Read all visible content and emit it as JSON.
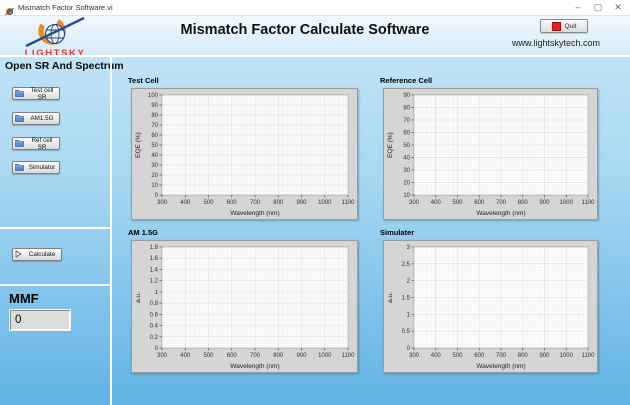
{
  "window": {
    "title": "Mismatch Factor Software.vi",
    "controls": {
      "minimize": "–",
      "maximize": "▢",
      "close": "✕"
    }
  },
  "header": {
    "title": "Mismatch Factor Calculate Software",
    "quit_label": "Quit",
    "website": "www.lightskytech.com"
  },
  "sidebar": {
    "logo_text": "LIGHTSKY",
    "heading": "Open SR And Spectrum",
    "buttons": [
      {
        "label": "Test cell SR",
        "icon": "folder-icon"
      },
      {
        "label": "AM1.5G",
        "icon": "folder-icon"
      },
      {
        "label": "Ref cell SR",
        "icon": "folder-icon"
      },
      {
        "label": "Simulator",
        "icon": "folder-icon"
      }
    ],
    "calculate_label": "Calculate",
    "calculate_icon": "run-icon",
    "mmf_label": "MMF",
    "mmf_value": "0"
  },
  "charts": [
    {
      "title": "Test Cell",
      "type": "line",
      "xlabel": "Wavelength (nm)",
      "ylabel": "EQE (%)",
      "x_ticks": [
        "300",
        "400",
        "500",
        "600",
        "700",
        "800",
        "900",
        "1000",
        "1100"
      ],
      "y_ticks": [
        "0",
        "10",
        "20",
        "30",
        "40",
        "50",
        "60",
        "70",
        "80",
        "90",
        "100"
      ],
      "series": []
    },
    {
      "title": "Reference Cell",
      "type": "line",
      "xlabel": "Wavelength (nm)",
      "ylabel": "EQE (%)",
      "x_ticks": [
        "300",
        "400",
        "500",
        "600",
        "700",
        "800",
        "900",
        "1000",
        "1100"
      ],
      "y_ticks": [
        "10",
        "20",
        "30",
        "40",
        "50",
        "60",
        "70",
        "80",
        "90"
      ],
      "series": []
    },
    {
      "title": "AM 1.5G",
      "type": "line",
      "xlabel": "Wavelength (nm)",
      "ylabel": "a.u.",
      "x_ticks": [
        "300",
        "400",
        "500",
        "600",
        "700",
        "800",
        "900",
        "1000",
        "1100"
      ],
      "y_ticks": [
        "0",
        "0.2",
        "0.4",
        "0.6",
        "0.8",
        "1",
        "1.2",
        "1.4",
        "1.6",
        "1.8"
      ],
      "series": []
    },
    {
      "title": "Simulater",
      "type": "line",
      "xlabel": "Wavelength (nm)",
      "ylabel": "a.u.",
      "x_ticks": [
        "300",
        "400",
        "500",
        "600",
        "700",
        "800",
        "900",
        "1000",
        "1100"
      ],
      "y_ticks": [
        "0",
        "0.5",
        "1",
        "1.5",
        "2",
        "2.5",
        "3"
      ],
      "series": []
    }
  ],
  "colors": {
    "logo_red": "#e5392a",
    "quit_red": "#e3201a",
    "folder_blue": "#5b8ed6",
    "panel_gray": "#d5d5d5",
    "bg_blue_top": "#c8e7f8",
    "bg_blue_bottom": "#61b3e5"
  }
}
